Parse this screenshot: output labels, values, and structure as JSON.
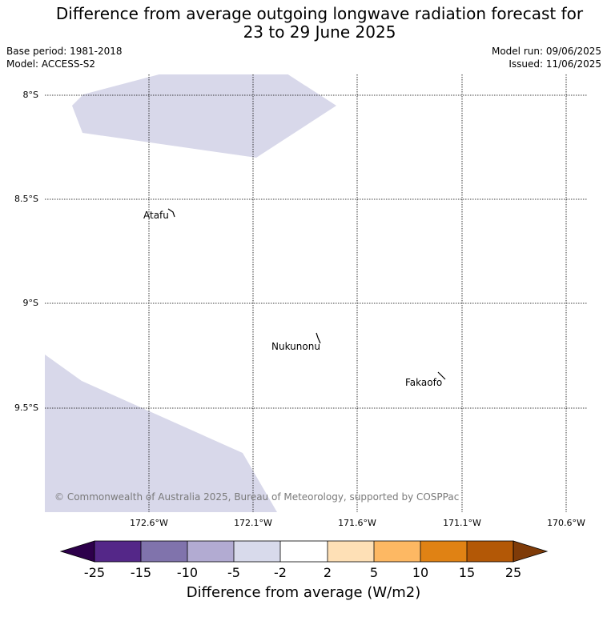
{
  "title": {
    "line1": "Difference from average outgoing longwave radiation forecast for",
    "line2": "23 to 29 June 2025"
  },
  "meta": {
    "base_period": "Base period: 1981-2018",
    "model": "Model: ACCESS-S2",
    "model_run": "Model run: 09/06/2025",
    "issued": "Issued: 11/06/2025"
  },
  "map": {
    "lat_labels": [
      "8°S",
      "8.5°S",
      "9°S",
      "9.5°S"
    ],
    "lon_labels": [
      "172.6°W",
      "172.1°W",
      "171.6°W",
      "171.1°W",
      "170.6°W"
    ],
    "places": [
      "Atafu",
      "Nukunonu",
      "Fakaofo"
    ],
    "anomaly_fill_color": "#d8d8ea",
    "copyright": "© Commonwealth of Australia 2025, Bureau of Meteorology, supported by COSPPac"
  },
  "colorbar": {
    "label": "Difference from average (W/m2)",
    "ticks": [
      "-25",
      "-15",
      "-10",
      "-5",
      "-2",
      "2",
      "5",
      "10",
      "15",
      "25"
    ],
    "colors": [
      "#2d004b",
      "#542788",
      "#8073ac",
      "#b2abd2",
      "#d8daeb",
      "#ffffff",
      "#fee0b6",
      "#fdb863",
      "#e08214",
      "#b35806",
      "#7f3b08"
    ]
  }
}
